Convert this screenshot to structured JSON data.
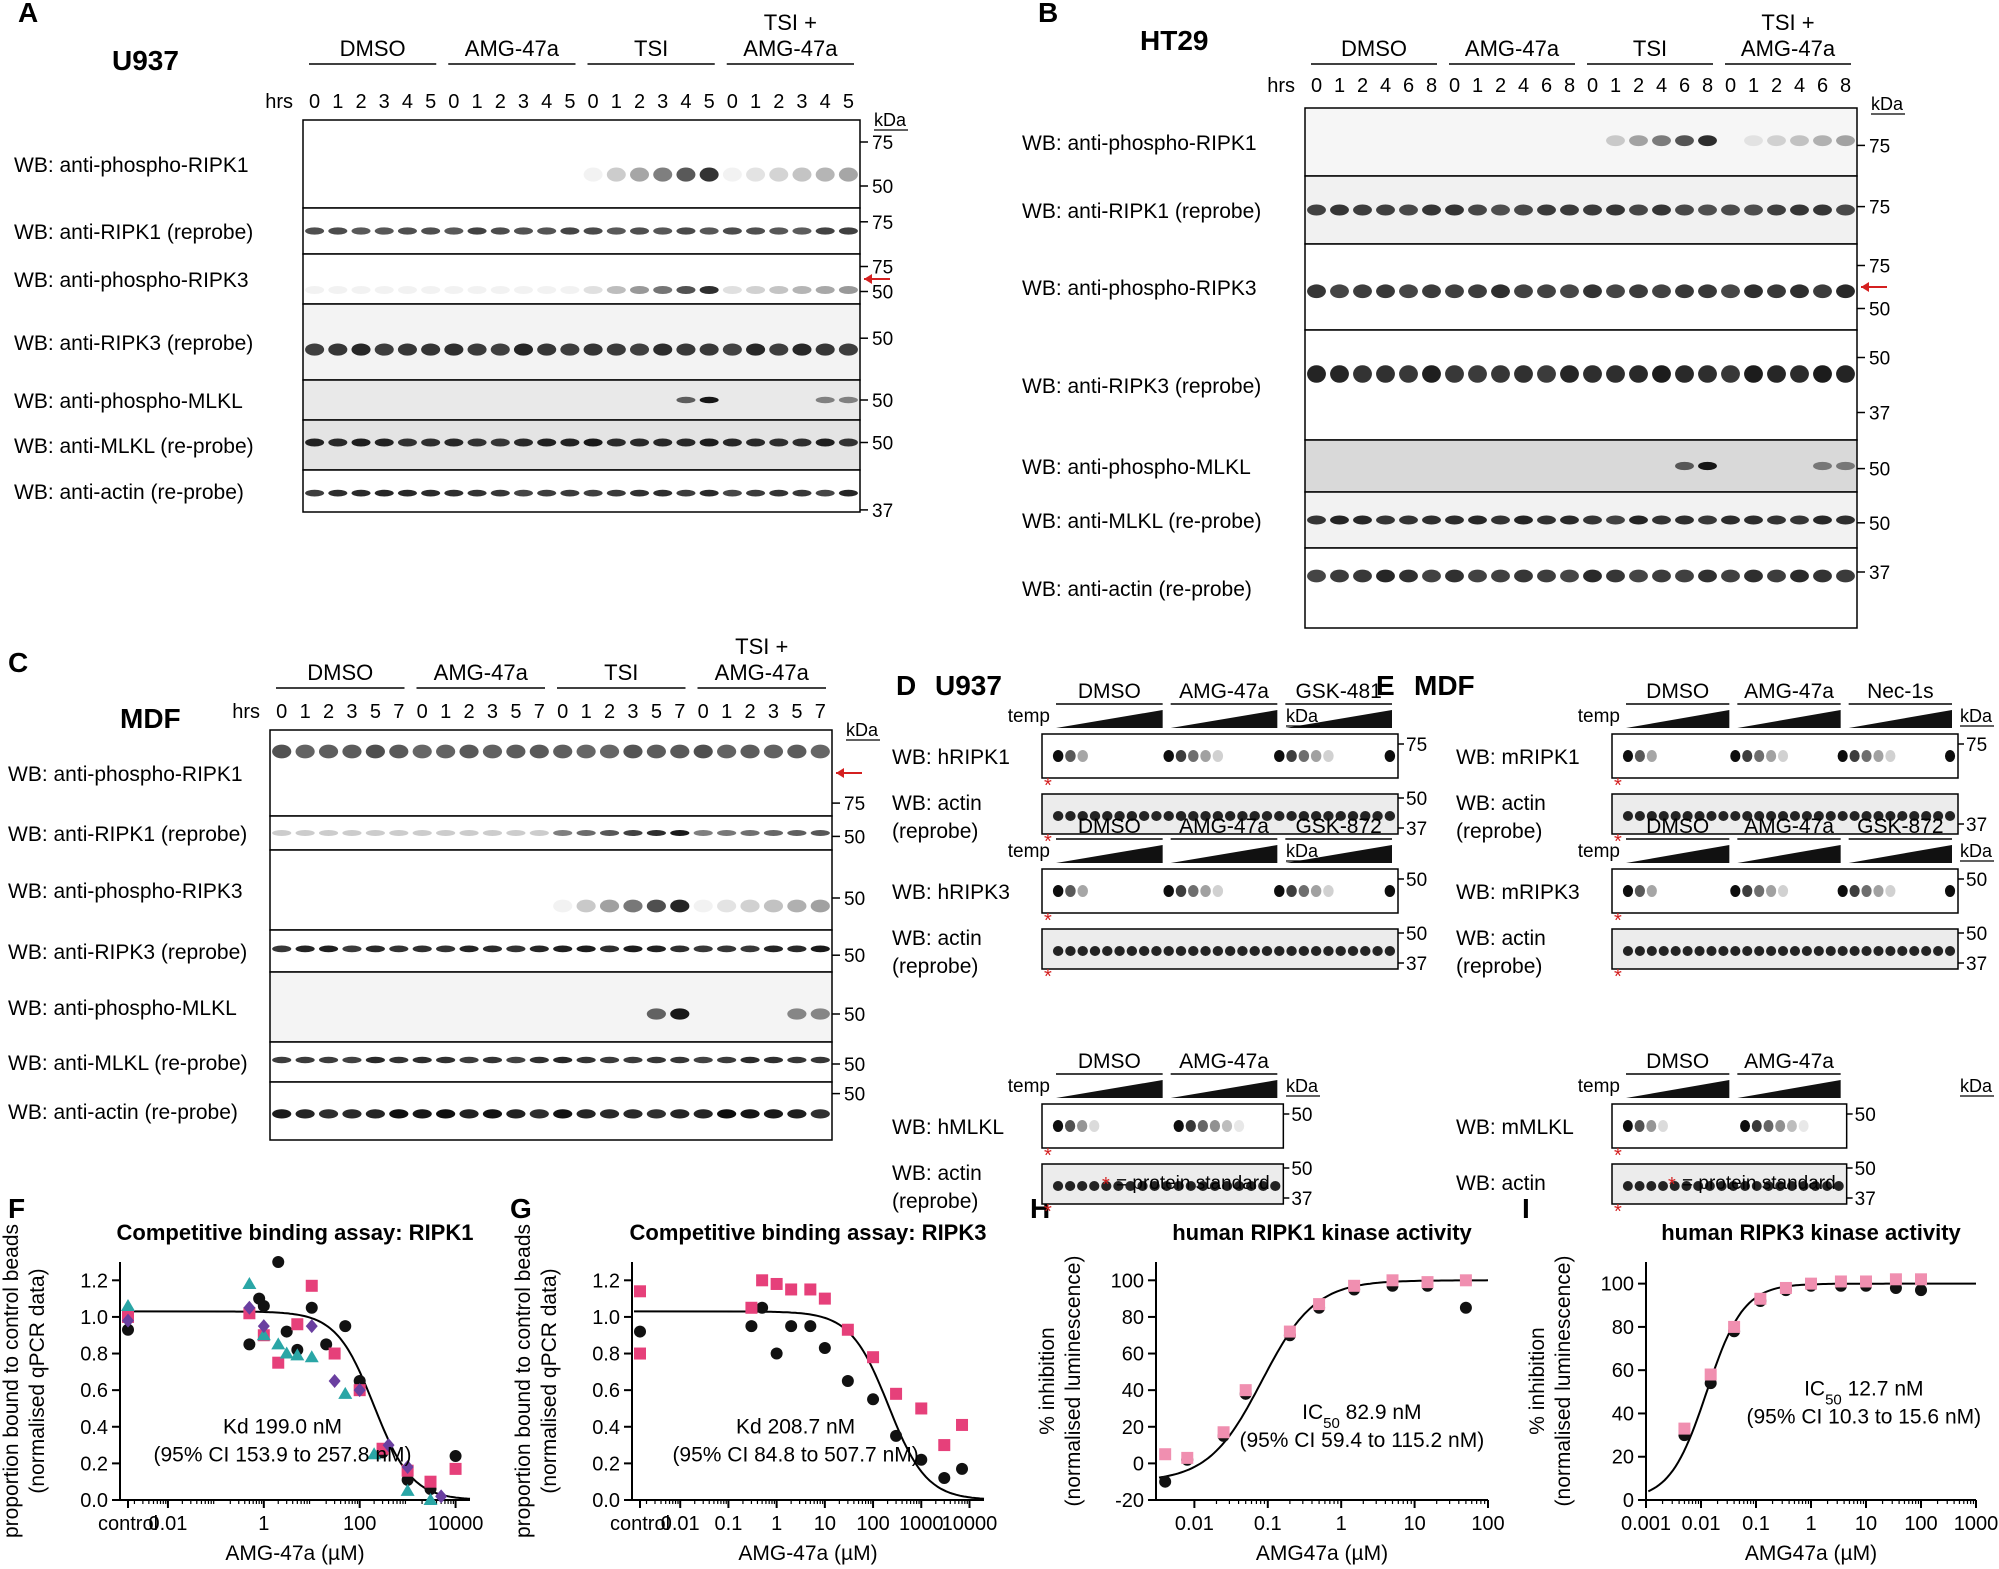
{
  "figure": {
    "panel_letters": [
      "A",
      "B",
      "C",
      "D",
      "E",
      "F",
      "G",
      "H",
      "I"
    ],
    "blots": {
      "A": {
        "cell_line": "U937",
        "hrs_label": "hrs",
        "kda_label": "kDa",
        "groups": [
          "DMSO",
          "AMG-47a",
          "TSI",
          "TSI +\nAMG-47a"
        ],
        "timepoints": [
          "0",
          "1",
          "2",
          "3",
          "4",
          "5"
        ],
        "rows": [
          {
            "label": "WB: anti-phospho-RIPK1",
            "markers": [
              "75",
              "50"
            ]
          },
          {
            "label": "WB: anti-RIPK1 (reprobe)",
            "markers": [
              "75"
            ]
          },
          {
            "label": "WB: anti-phospho-RIPK3",
            "markers": [
              "75",
              "50"
            ]
          },
          {
            "label": "WB: anti-RIPK3 (reprobe)",
            "markers": [
              "50"
            ]
          },
          {
            "label": "WB: anti-phospho-MLKL",
            "markers": [
              "50"
            ]
          },
          {
            "label": "WB: anti-MLKL (re-probe)",
            "markers": [
              "50"
            ]
          },
          {
            "label": "WB: anti-actin (re-probe)",
            "markers": [
              "37"
            ]
          }
        ]
      },
      "B": {
        "cell_line": "HT29",
        "hrs_label": "hrs",
        "kda_label": "kDa",
        "groups": [
          "DMSO",
          "AMG-47a",
          "TSI",
          "TSI +\nAMG-47a"
        ],
        "timepoints": [
          "0",
          "1",
          "2",
          "4",
          "6",
          "8"
        ],
        "rows": [
          {
            "label": "WB: anti-phospho-RIPK1",
            "markers": [
              "75"
            ]
          },
          {
            "label": "WB: anti-RIPK1 (reprobe)",
            "markers": [
              "75"
            ]
          },
          {
            "label": "WB: anti-phospho-RIPK3",
            "markers": [
              "75",
              "50"
            ]
          },
          {
            "label": "WB: anti-RIPK3 (reprobe)",
            "markers": [
              "50",
              "37"
            ]
          },
          {
            "label": "WB: anti-phospho-MLKL",
            "markers": [
              "50"
            ]
          },
          {
            "label": "WB: anti-MLKL (re-probe)",
            "markers": [
              "50"
            ]
          },
          {
            "label": "WB: anti-actin (re-probe)",
            "markers": [
              "37"
            ]
          }
        ]
      },
      "C": {
        "cell_line": "MDF",
        "hrs_label": "hrs",
        "kda_label": "kDa",
        "groups": [
          "DMSO",
          "AMG-47a",
          "TSI",
          "TSI +\nAMG-47a"
        ],
        "timepoints": [
          "0",
          "1",
          "2",
          "3",
          "5",
          "7"
        ],
        "rows": [
          {
            "label": "WB: anti-phospho-RIPK1",
            "markers": [
              "75"
            ]
          },
          {
            "label": "WB: anti-RIPK1 (reprobe)",
            "markers": [
              "50"
            ]
          },
          {
            "label": "WB: anti-phospho-RIPK3",
            "markers": [
              "50"
            ]
          },
          {
            "label": "WB: anti-RIPK3 (reprobe)",
            "markers": [
              "50"
            ]
          },
          {
            "label": "WB: anti-phospho-MLKL",
            "markers": [
              "50"
            ]
          },
          {
            "label": "WB: anti-MLKL (re-probe)",
            "markers": [
              "50"
            ]
          },
          {
            "label": "WB: anti-actin (re-probe)",
            "markers": [
              "50"
            ]
          }
        ]
      },
      "D": {
        "cell_line": "U937",
        "temp_label": "temp",
        "kda_label": "kDa",
        "blocks": [
          {
            "groups": [
              "DMSO",
              "AMG-47a",
              "GSK-481"
            ],
            "target": "WB: hRIPK1",
            "target_markers": [
              "75"
            ],
            "actin": "WB: actin\n(reprobe)",
            "actin_markers": [
              "50",
              "37"
            ]
          },
          {
            "groups": [
              "DMSO",
              "AMG-47a",
              "GSK-872"
            ],
            "target": "WB: hRIPK3",
            "target_markers": [
              "50"
            ],
            "actin": "WB: actin\n(reprobe)",
            "actin_markers": [
              "50",
              "37"
            ]
          },
          {
            "groups": [
              "DMSO",
              "AMG-47a"
            ],
            "target": "WB: hMLKL",
            "target_markers": [
              "50"
            ],
            "actin": "WB: actin\n(reprobe)",
            "actin_markers": [
              "50",
              "37"
            ]
          }
        ],
        "footnote": "= protein standard"
      },
      "E": {
        "cell_line": "MDF",
        "temp_label": "temp",
        "kda_label": "kDa",
        "blocks": [
          {
            "groups": [
              "DMSO",
              "AMG-47a",
              "Nec-1s"
            ],
            "target": "WB: mRIPK1",
            "target_markers": [
              "75"
            ],
            "actin": "WB: actin\n(reprobe)",
            "actin_markers": [
              "37"
            ]
          },
          {
            "groups": [
              "DMSO",
              "AMG-47a",
              "GSK-872"
            ],
            "target": "WB: mRIPK3",
            "target_markers": [
              "50"
            ],
            "actin": "WB: actin\n(reprobe)",
            "actin_markers": [
              "50",
              "37"
            ]
          },
          {
            "groups": [
              "DMSO",
              "AMG-47a"
            ],
            "target": "WB: mMLKL",
            "target_markers": [
              "50"
            ],
            "actin": "WB: actin",
            "actin_markers": [
              "50",
              "37"
            ]
          }
        ],
        "footnote": "= protein standard"
      }
    },
    "colors": {
      "series_black": "#111111",
      "series_pink": "#e6407a",
      "series_teal": "#2aa6a6",
      "series_purple": "#6a3fa0",
      "series_lightpink": "#f08fb0",
      "arrow": "#d42020",
      "star": "#d42020"
    }
  },
  "chart_data": [
    {
      "panel": "F",
      "type": "scatter",
      "title": "Competitive binding assay: RIPK1",
      "ylabel": "proportion bound to control beads\n(normalised qPCR data)",
      "xlabel": "AMG-47a (µM)",
      "x_scale": "log",
      "xlim": [
        0.001,
        20000
      ],
      "ylim": [
        0,
        1.3
      ],
      "xticks": [
        "control",
        "0.01",
        "1",
        "100",
        "10000"
      ],
      "yticks": [
        "0.0",
        "0.2",
        "0.4",
        "0.6",
        "0.8",
        "1.0",
        "1.2"
      ],
      "annotation": "Kd 199.0 nM\n(95% CI 153.9 to 257.8 nM)",
      "fit": {
        "top": 1.03,
        "bottom": 0.0,
        "ic50": 199,
        "hill": 1.1
      },
      "series": [
        {
          "color": "black",
          "marker": "circle",
          "points": [
            [
              0.001,
              0.93
            ],
            [
              0.5,
              0.85
            ],
            [
              0.8,
              1.1
            ],
            [
              1,
              1.06
            ],
            [
              2,
              1.3
            ],
            [
              3,
              0.92
            ],
            [
              5,
              0.82
            ],
            [
              10,
              1.05
            ],
            [
              20,
              0.85
            ],
            [
              50,
              0.95
            ],
            [
              100,
              0.65
            ],
            [
              300,
              0.26
            ],
            [
              1000,
              0.11
            ],
            [
              3000,
              0.06
            ],
            [
              10000,
              0.24
            ]
          ]
        },
        {
          "color": "pink",
          "marker": "square",
          "points": [
            [
              0.001,
              1.0
            ],
            [
              0.5,
              1.02
            ],
            [
              1,
              0.9
            ],
            [
              2,
              0.75
            ],
            [
              5,
              0.96
            ],
            [
              10,
              1.17
            ],
            [
              30,
              0.8
            ],
            [
              100,
              0.6
            ],
            [
              300,
              0.28
            ],
            [
              1000,
              0.16
            ],
            [
              3000,
              0.1
            ],
            [
              10000,
              0.17
            ]
          ]
        },
        {
          "color": "teal",
          "marker": "triangle",
          "points": [
            [
              0.001,
              1.06
            ],
            [
              0.5,
              1.18
            ],
            [
              1,
              0.9
            ],
            [
              2,
              0.85
            ],
            [
              3,
              0.8
            ],
            [
              5,
              0.79
            ],
            [
              10,
              0.78
            ],
            [
              50,
              0.58
            ],
            [
              200,
              0.25
            ],
            [
              1000,
              0.05
            ],
            [
              3000,
              0.0
            ]
          ]
        },
        {
          "color": "purple",
          "marker": "diamond",
          "points": [
            [
              0.001,
              0.98
            ],
            [
              0.5,
              1.05
            ],
            [
              1,
              0.95
            ],
            [
              10,
              0.95
            ],
            [
              30,
              0.65
            ],
            [
              100,
              0.6
            ],
            [
              400,
              0.3
            ],
            [
              1000,
              0.18
            ],
            [
              5000,
              0.02
            ]
          ]
        }
      ]
    },
    {
      "panel": "G",
      "type": "scatter",
      "title": "Competitive binding assay: RIPK3",
      "ylabel": "proportion bound to control beads\n(normalised qPCR data)",
      "xlabel": "AMG-47a (µM)",
      "x_scale": "log",
      "xlim": [
        0.001,
        20000
      ],
      "ylim": [
        0,
        1.3
      ],
      "xticks": [
        "control",
        "0.01",
        "0.1",
        "1",
        "10",
        "100",
        "1000",
        "10000"
      ],
      "yticks": [
        "0.0",
        "0.2",
        "0.4",
        "0.6",
        "0.8",
        "1.0",
        "1.2"
      ],
      "annotation": "Kd 208.7 nM\n(95% CI 84.8 to 507.7 nM)",
      "fit": {
        "top": 1.03,
        "bottom": 0.0,
        "ic50": 208.7,
        "hill": 1.1
      },
      "series": [
        {
          "color": "black",
          "marker": "circle",
          "points": [
            [
              0.001,
              0.92
            ],
            [
              0.3,
              0.95
            ],
            [
              0.5,
              1.05
            ],
            [
              1,
              0.8
            ],
            [
              2,
              0.95
            ],
            [
              5,
              0.95
            ],
            [
              10,
              0.83
            ],
            [
              30,
              0.65
            ],
            [
              100,
              0.55
            ],
            [
              300,
              0.35
            ],
            [
              1000,
              0.22
            ],
            [
              3000,
              0.12
            ],
            [
              7000,
              0.17
            ]
          ]
        },
        {
          "color": "pink",
          "marker": "square",
          "points": [
            [
              0.001,
              0.8
            ],
            [
              0.001,
              1.14
            ],
            [
              0.3,
              1.05
            ],
            [
              0.5,
              1.2
            ],
            [
              1,
              1.18
            ],
            [
              2,
              1.15
            ],
            [
              5,
              1.15
            ],
            [
              10,
              1.1
            ],
            [
              30,
              0.93
            ],
            [
              100,
              0.78
            ],
            [
              300,
              0.58
            ],
            [
              1000,
              0.5
            ],
            [
              3000,
              0.3
            ],
            [
              7000,
              0.41
            ]
          ]
        }
      ]
    },
    {
      "panel": "H",
      "type": "scatter",
      "title": "human RIPK1 kinase activity",
      "ylabel": "% inhibition\n(normalised luminescence)",
      "xlabel": "AMG47a (µM)",
      "x_scale": "log",
      "xlim": [
        0.003,
        100
      ],
      "ylim": [
        -20,
        110
      ],
      "xticks": [
        "0.01",
        "0.1",
        "1",
        "10",
        "100"
      ],
      "yticks": [
        "-20",
        "0",
        "20",
        "40",
        "60",
        "80",
        "100"
      ],
      "annotation_prefix": "IC",
      "annotation_sub": "50",
      "annotation": " 82.9 nM\n(95% CI 59.4 to 115.2 nM)",
      "fit": {
        "top": 100,
        "bottom": -10,
        "ic50": 0.0829,
        "hill": 1.2
      },
      "series": [
        {
          "color": "black",
          "marker": "circle",
          "points": [
            [
              0.004,
              -10
            ],
            [
              0.008,
              2
            ],
            [
              0.025,
              15
            ],
            [
              0.05,
              38
            ],
            [
              0.2,
              70
            ],
            [
              0.5,
              85
            ],
            [
              1.5,
              95
            ],
            [
              5,
              97
            ],
            [
              15,
              97
            ],
            [
              50,
              85
            ]
          ]
        },
        {
          "color": "lightpink",
          "marker": "square",
          "points": [
            [
              0.004,
              5
            ],
            [
              0.008,
              3
            ],
            [
              0.025,
              17
            ],
            [
              0.05,
              40
            ],
            [
              0.2,
              72
            ],
            [
              0.5,
              87
            ],
            [
              1.5,
              97
            ],
            [
              5,
              100
            ],
            [
              15,
              99
            ],
            [
              50,
              100
            ]
          ]
        }
      ]
    },
    {
      "panel": "I",
      "type": "scatter",
      "title": "human RIPK3 kinase activity",
      "ylabel": "% inhibition\n(normalised luminescence)",
      "xlabel": "AMG47a (µM)",
      "x_scale": "log",
      "xlim": [
        0.001,
        1000
      ],
      "ylim": [
        0,
        110
      ],
      "xticks": [
        "0.001",
        "0.01",
        "0.1",
        "1",
        "10",
        "100",
        "1000"
      ],
      "yticks": [
        "0",
        "20",
        "40",
        "60",
        "80",
        "100"
      ],
      "annotation_prefix": "IC",
      "annotation_sub": "50",
      "annotation": " 12.7 nM\n(95% CI 10.3 to 15.6 nM)",
      "fit": {
        "top": 100,
        "bottom": 0,
        "ic50": 0.0127,
        "hill": 1.3
      },
      "series": [
        {
          "color": "black",
          "marker": "circle",
          "points": [
            [
              0.005,
              30
            ],
            [
              0.015,
              54
            ],
            [
              0.04,
              78
            ],
            [
              0.12,
              92
            ],
            [
              0.35,
              97
            ],
            [
              1,
              99
            ],
            [
              3.5,
              99
            ],
            [
              10,
              99
            ],
            [
              35,
              98
            ],
            [
              100,
              97
            ]
          ]
        },
        {
          "color": "lightpink",
          "marker": "square",
          "points": [
            [
              0.005,
              33
            ],
            [
              0.015,
              58
            ],
            [
              0.04,
              80
            ],
            [
              0.12,
              93
            ],
            [
              0.35,
              98
            ],
            [
              1,
              100
            ],
            [
              3.5,
              101
            ],
            [
              10,
              101
            ],
            [
              35,
              102
            ],
            [
              100,
              102
            ]
          ]
        }
      ]
    }
  ]
}
